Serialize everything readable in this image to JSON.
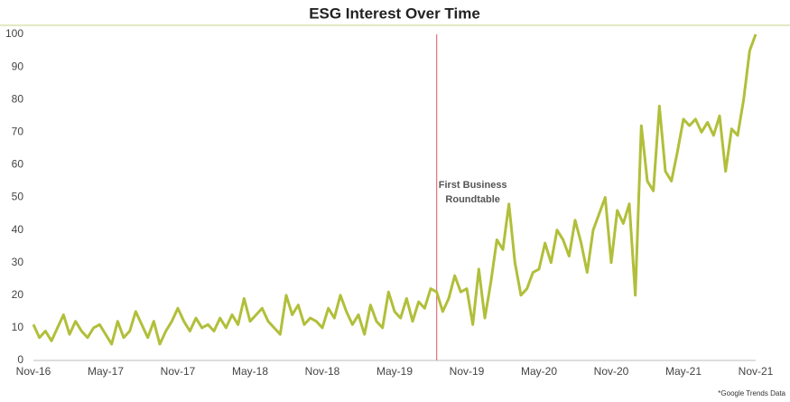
{
  "chart_data": {
    "type": "line",
    "title": "ESG Interest Over Time",
    "categories": [
      "Nov-16",
      null,
      null,
      null,
      null,
      null,
      null,
      null,
      null,
      null,
      null,
      null,
      "May-17",
      null,
      null,
      null,
      null,
      null,
      null,
      null,
      null,
      null,
      null,
      null,
      "Nov-17",
      null,
      null,
      null,
      null,
      null,
      null,
      null,
      null,
      null,
      null,
      null,
      "May-18",
      null,
      null,
      null,
      null,
      null,
      null,
      null,
      null,
      null,
      null,
      null,
      "Nov-18",
      null,
      null,
      null,
      null,
      null,
      null,
      null,
      null,
      null,
      null,
      null,
      "May-19",
      null,
      null,
      null,
      null,
      null,
      null,
      null,
      null,
      null,
      null,
      null,
      "Nov-19",
      null,
      null,
      null,
      null,
      null,
      null,
      null,
      null,
      null,
      null,
      null,
      "May-20",
      null,
      null,
      null,
      null,
      null,
      null,
      null,
      null,
      null,
      null,
      null,
      "Nov-20",
      null,
      null,
      null,
      null,
      null,
      null,
      null,
      null,
      null,
      null,
      null,
      "May-21",
      null,
      null,
      null,
      null,
      null,
      null,
      null,
      null,
      null,
      null,
      null,
      "Nov-21"
    ],
    "values": [
      11,
      7,
      9,
      6,
      10,
      14,
      8,
      12,
      9,
      7,
      10,
      11,
      8,
      5,
      12,
      7,
      9,
      15,
      11,
      7,
      12,
      5,
      9,
      12,
      16,
      12,
      9,
      13,
      10,
      11,
      9,
      13,
      10,
      14,
      11,
      19,
      12,
      14,
      16,
      12,
      10,
      8,
      20,
      14,
      17,
      11,
      13,
      12,
      10,
      16,
      13,
      20,
      15,
      11,
      14,
      8,
      17,
      12,
      10,
      21,
      15,
      13,
      19,
      12,
      18,
      16,
      22,
      21,
      15,
      19,
      26,
      21,
      22,
      11,
      28,
      13,
      24,
      37,
      34,
      48,
      30,
      20,
      22,
      27,
      28,
      36,
      30,
      40,
      37,
      32,
      43,
      36,
      27,
      40,
      45,
      50,
      30,
      46,
      42,
      48,
      20,
      72,
      55,
      52,
      78,
      58,
      55,
      64,
      74,
      72,
      74,
      70,
      73,
      69,
      75,
      58,
      71,
      69,
      80,
      95,
      100
    ],
    "color": "#b1bf3a",
    "ylim": [
      0,
      100
    ],
    "yticks": [
      0,
      10,
      20,
      30,
      40,
      50,
      60,
      70,
      80,
      90,
      100
    ],
    "grid": false,
    "annotation": {
      "index": 67,
      "color": "#e0707c",
      "lines": [
        "First Business",
        "Roundtable"
      ]
    },
    "footnote": "*Google Trends Data"
  }
}
